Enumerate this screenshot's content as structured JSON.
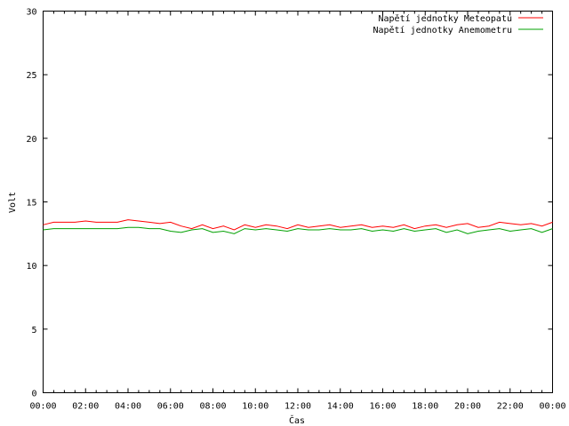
{
  "chart_data": {
    "type": "line",
    "title": "",
    "xlabel": "Čas",
    "ylabel": "Volt",
    "xlim": [
      0,
      24
    ],
    "ylim": [
      0,
      30
    ],
    "x_tick_labels": [
      "00:00",
      "02:00",
      "04:00",
      "06:00",
      "08:00",
      "10:00",
      "12:00",
      "14:00",
      "16:00",
      "18:00",
      "20:00",
      "22:00",
      "00:00"
    ],
    "y_tick_labels": [
      "0",
      "5",
      "10",
      "15",
      "20",
      "25",
      "30"
    ],
    "grid": false,
    "legend_position": "top-right",
    "x_unit": "hours",
    "x": [
      0,
      0.5,
      1,
      1.5,
      2,
      2.5,
      3,
      3.5,
      4,
      4.5,
      5,
      5.5,
      6,
      6.5,
      7,
      7.5,
      8,
      8.5,
      9,
      9.5,
      10,
      10.5,
      11,
      11.5,
      12,
      12.5,
      13,
      13.5,
      14,
      14.5,
      15,
      15.5,
      16,
      16.5,
      17,
      17.5,
      18,
      18.5,
      19,
      19.5,
      20,
      20.5,
      21,
      21.5,
      22,
      22.5,
      23,
      23.5,
      24
    ],
    "series": [
      {
        "name": "Napětí jednotky Meteopatu",
        "color": "#ff0000",
        "values": [
          13.2,
          13.4,
          13.4,
          13.4,
          13.5,
          13.4,
          13.4,
          13.4,
          13.6,
          13.5,
          13.4,
          13.3,
          13.4,
          13.1,
          12.9,
          13.2,
          12.9,
          13.1,
          12.8,
          13.2,
          13.0,
          13.2,
          13.1,
          12.9,
          13.2,
          13.0,
          13.1,
          13.2,
          13.0,
          13.1,
          13.2,
          13.0,
          13.1,
          13.0,
          13.2,
          12.9,
          13.1,
          13.2,
          13.0,
          13.2,
          13.3,
          13.0,
          13.1,
          13.4,
          13.3,
          13.2,
          13.3,
          13.1,
          13.4
        ]
      },
      {
        "name": "Napětí jednotky Anemometru",
        "color": "#00a000",
        "values": [
          12.8,
          12.9,
          12.9,
          12.9,
          12.9,
          12.9,
          12.9,
          12.9,
          13.0,
          13.0,
          12.9,
          12.9,
          12.7,
          12.6,
          12.8,
          12.9,
          12.6,
          12.7,
          12.5,
          12.9,
          12.8,
          12.9,
          12.8,
          12.7,
          12.9,
          12.8,
          12.8,
          12.9,
          12.8,
          12.8,
          12.9,
          12.7,
          12.8,
          12.7,
          12.9,
          12.7,
          12.8,
          12.9,
          12.6,
          12.8,
          12.5,
          12.7,
          12.8,
          12.9,
          12.7,
          12.8,
          12.9,
          12.6,
          12.9
        ]
      }
    ]
  }
}
